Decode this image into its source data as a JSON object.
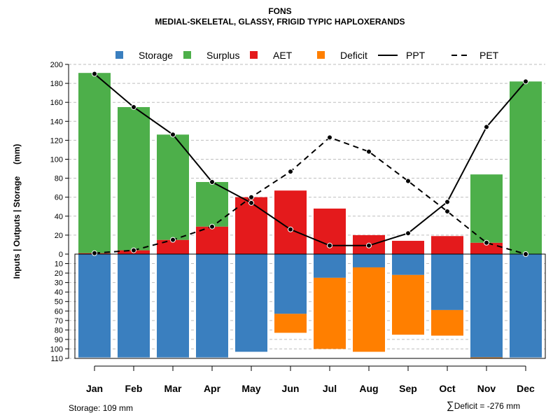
{
  "title": "FONS",
  "subtitle": "MEDIAL-SKELETAL, GLASSY, FRIGID TYPIC HAPLOXERANDS",
  "footer": {
    "storage_text": "Storage: 109 mm",
    "deficit_symbol": "∑",
    "deficit_text": "Deficit = -276 mm"
  },
  "colors": {
    "storage": "#3a7fbf",
    "surplus": "#4daf4a",
    "aet": "#e41a1c",
    "deficit": "#ff7f00",
    "line": "#000000",
    "grid": "#bebebe"
  },
  "chart_data": {
    "type": "bar",
    "categories": [
      "Jan",
      "Feb",
      "Mar",
      "Apr",
      "May",
      "Jun",
      "Jul",
      "Aug",
      "Sep",
      "Oct",
      "Nov",
      "Dec"
    ],
    "ylabel": "Inputs | Outputs | Storage     (mm)",
    "ylim_top": [
      0,
      200
    ],
    "ylim_bottom": [
      0,
      110
    ],
    "yticks_top": [
      0,
      20,
      40,
      60,
      80,
      100,
      120,
      140,
      160,
      180,
      200
    ],
    "yticks_bottom": [
      10,
      20,
      30,
      40,
      50,
      60,
      70,
      80,
      90,
      100,
      110
    ],
    "legend": [
      {
        "label": "Storage",
        "kind": "box",
        "color": "#3a7fbf"
      },
      {
        "label": "Surplus",
        "kind": "box",
        "color": "#4daf4a"
      },
      {
        "label": "AET",
        "kind": "box",
        "color": "#e41a1c"
      },
      {
        "label": "Deficit",
        "kind": "box",
        "color": "#ff7f00"
      },
      {
        "label": "PPT",
        "kind": "solid"
      },
      {
        "label": "PET",
        "kind": "dashed"
      }
    ],
    "series": [
      {
        "name": "AET",
        "values": [
          1,
          4,
          15,
          29,
          60,
          67,
          48,
          20,
          14,
          19,
          12,
          0
        ]
      },
      {
        "name": "Surplus",
        "values": [
          190,
          151,
          111,
          47,
          0,
          0,
          0,
          0,
          0,
          0,
          72,
          182
        ]
      },
      {
        "name": "Storage",
        "values": [
          109,
          109,
          109,
          109,
          103,
          63,
          25,
          14,
          22,
          59,
          109,
          109
        ]
      },
      {
        "name": "Deficit",
        "values": [
          0,
          0,
          0,
          0,
          0,
          20,
          75,
          89,
          63,
          27,
          1,
          0
        ]
      },
      {
        "name": "PPT",
        "values": [
          190,
          155,
          126,
          76,
          54,
          26,
          9,
          9,
          22,
          55,
          134,
          182
        ]
      },
      {
        "name": "PET",
        "values": [
          1,
          4,
          15,
          29,
          60,
          87,
          123,
          108,
          77,
          45,
          12,
          0
        ]
      }
    ]
  }
}
